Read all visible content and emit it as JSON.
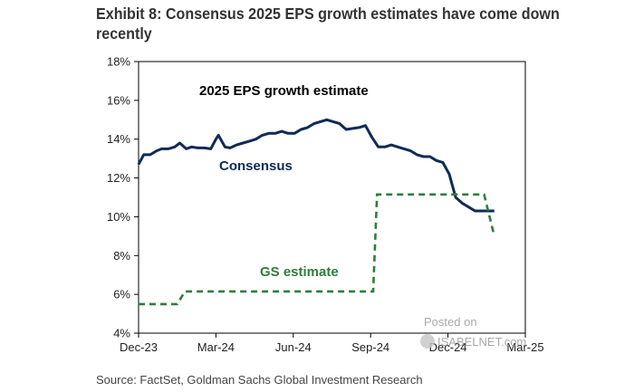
{
  "title": "Exhibit 8: Consensus 2025 EPS growth estimates have come down recently",
  "source": "Source: FactSet, Goldman Sachs Global Investment Research",
  "watermark": {
    "line1": "Posted on",
    "line2": "ISABELNET.com"
  },
  "colors": {
    "consensus": "#0f2a57",
    "gs": "#2e7d3a",
    "axis": "#000000"
  },
  "chart_data": {
    "type": "line",
    "title": "2025 EPS growth estimate",
    "xlabel": "",
    "ylabel": "",
    "ylim": [
      4,
      18
    ],
    "yticks": [
      "4%",
      "6%",
      "8%",
      "10%",
      "12%",
      "14%",
      "16%",
      "18%"
    ],
    "yticks_values": [
      4,
      6,
      8,
      10,
      12,
      14,
      16,
      18
    ],
    "xlim": [
      0,
      15
    ],
    "xticks": [
      "Dec-23",
      "Mar-24",
      "Jun-24",
      "Sep-24",
      "Dec-24",
      "Mar-25"
    ],
    "xticks_values": [
      0,
      3,
      6,
      9,
      12,
      15
    ],
    "series": [
      {
        "name": "Consensus",
        "style": "solid",
        "x": [
          0,
          0.2,
          0.45,
          0.7,
          0.9,
          1.15,
          1.4,
          1.6,
          1.85,
          2.05,
          2.3,
          2.55,
          2.8,
          3.0,
          3.1,
          3.35,
          3.55,
          3.8,
          4.05,
          4.3,
          4.55,
          4.8,
          5.05,
          5.3,
          5.55,
          5.8,
          6.05,
          6.3,
          6.55,
          6.8,
          7.05,
          7.3,
          7.55,
          7.8,
          8.05,
          8.3,
          8.55,
          8.8,
          9.05,
          9.3,
          9.55,
          9.8,
          10.05,
          10.3,
          10.55,
          10.8,
          11.05,
          11.3,
          11.55,
          11.8,
          12.05,
          12.3,
          12.55,
          12.8,
          13.05,
          13.3,
          13.55,
          13.8
        ],
        "values": [
          12.7,
          13.2,
          13.2,
          13.4,
          13.5,
          13.5,
          13.6,
          13.8,
          13.5,
          13.6,
          13.55,
          13.55,
          13.5,
          14.0,
          14.2,
          13.6,
          13.55,
          13.7,
          13.8,
          13.9,
          14.0,
          14.2,
          14.3,
          14.3,
          14.4,
          14.3,
          14.3,
          14.5,
          14.6,
          14.8,
          14.9,
          15.0,
          14.9,
          14.8,
          14.5,
          14.55,
          14.6,
          14.7,
          14.1,
          13.6,
          13.6,
          13.7,
          13.6,
          13.5,
          13.4,
          13.2,
          13.1,
          13.1,
          12.9,
          12.8,
          12.2,
          11.0,
          10.7,
          10.5,
          10.3,
          10.3,
          10.3,
          10.3
        ]
      },
      {
        "name": "GS estimate",
        "style": "dashed",
        "x": [
          0,
          1.5,
          1.8,
          9.1,
          9.25,
          13.4,
          13.8
        ],
        "values": [
          5.5,
          5.5,
          6.15,
          6.15,
          11.15,
          11.15,
          9.0
        ]
      }
    ],
    "annotations": [
      "Consensus",
      "GS estimate"
    ]
  }
}
